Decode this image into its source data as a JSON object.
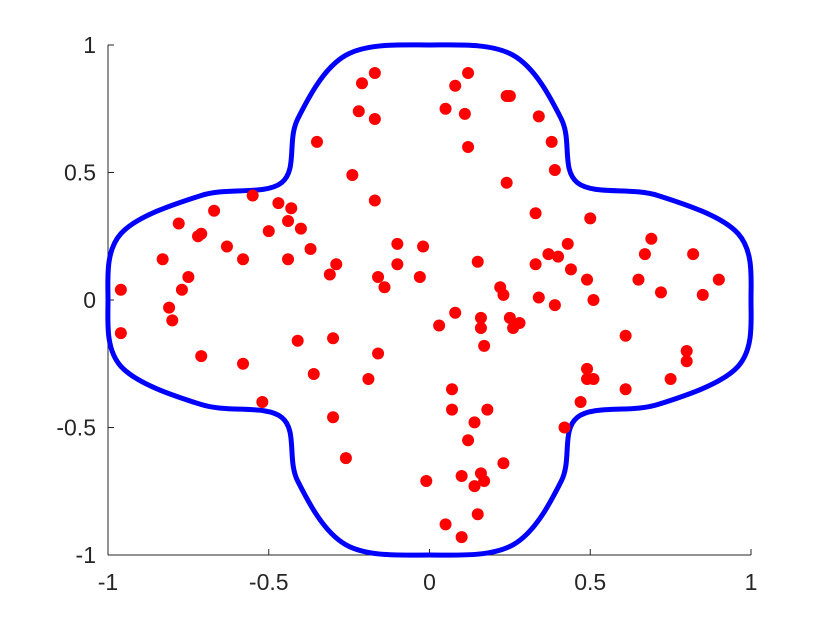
{
  "chart_data": {
    "type": "scatter",
    "xlim": [
      -1,
      1
    ],
    "ylim": [
      -1,
      1
    ],
    "xticks": [
      -1,
      -0.5,
      0,
      0.5,
      1
    ],
    "yticks": [
      -1,
      -0.5,
      0,
      0.5,
      1
    ],
    "series": [
      {
        "type": "line",
        "color": "#0000ff",
        "closed": true,
        "x": [
          1,
          0.96,
          0.71,
          0.46,
          0.41,
          0.26,
          0,
          -0.26,
          -0.41,
          -0.46,
          -0.71,
          -0.96,
          -1,
          -0.96,
          -0.71,
          -0.46,
          -0.41,
          -0.26,
          0,
          0.26,
          0.41,
          0.46,
          0.71,
          0.96
        ],
        "values": [
          0,
          0.26,
          0.41,
          0.46,
          0.71,
          0.96,
          1,
          0.96,
          0.71,
          0.46,
          0.41,
          0.26,
          0,
          -0.26,
          -0.41,
          -0.46,
          -0.71,
          -0.96,
          -1,
          -0.96,
          -0.71,
          -0.46,
          -0.41,
          -0.26
        ]
      },
      {
        "type": "scatter",
        "color": "#ff0000",
        "x": [
          -0.96,
          -0.96,
          -0.83,
          -0.81,
          -0.8,
          -0.78,
          -0.77,
          -0.75,
          -0.72,
          -0.71,
          -0.71,
          -0.67,
          -0.63,
          -0.58,
          -0.58,
          -0.55,
          -0.52,
          -0.5,
          -0.47,
          -0.44,
          -0.44,
          -0.43,
          -0.41,
          -0.4,
          -0.37,
          -0.36,
          -0.35,
          -0.31,
          -0.3,
          -0.3,
          -0.29,
          -0.26,
          -0.24,
          -0.22,
          -0.21,
          -0.19,
          -0.17,
          -0.17,
          -0.17,
          -0.16,
          -0.16,
          -0.14,
          -0.1,
          -0.1,
          -0.03,
          -0.02,
          -0.01,
          0.03,
          0.05,
          0.05,
          0.07,
          0.07,
          0.08,
          0.08,
          0.1,
          0.1,
          0.11,
          0.12,
          0.12,
          0.12,
          0.14,
          0.14,
          0.15,
          0.15,
          0.16,
          0.16,
          0.16,
          0.17,
          0.17,
          0.18,
          0.22,
          0.23,
          0.23,
          0.24,
          0.24,
          0.25,
          0.25,
          0.26,
          0.28,
          0.33,
          0.33,
          0.34,
          0.34,
          0.37,
          0.38,
          0.39,
          0.4,
          0.39,
          0.43,
          0.42,
          0.44,
          0.47,
          0.49,
          0.49,
          0.49,
          0.5,
          0.51,
          0.51,
          0.61,
          0.61,
          0.65,
          0.67,
          0.69,
          0.72,
          0.75,
          0.8,
          0.8,
          0.82,
          0.85,
          0.9
        ],
        "values": [
          0.04,
          -0.13,
          0.16,
          -0.03,
          -0.08,
          0.3,
          0.04,
          0.09,
          0.25,
          0.26,
          -0.22,
          0.35,
          0.21,
          0.16,
          -0.25,
          0.41,
          -0.4,
          0.27,
          0.38,
          0.31,
          0.16,
          0.36,
          -0.16,
          0.28,
          0.2,
          -0.29,
          0.62,
          0.1,
          -0.15,
          -0.46,
          0.14,
          -0.62,
          0.49,
          0.74,
          0.85,
          -0.31,
          0.71,
          0.39,
          0.89,
          -0.21,
          0.09,
          0.05,
          0.22,
          0.14,
          0.09,
          0.21,
          -0.71,
          -0.1,
          -0.88,
          0.75,
          -0.43,
          -0.35,
          -0.05,
          0.84,
          -0.93,
          -0.69,
          0.73,
          0.89,
          0.6,
          -0.55,
          -0.48,
          -0.73,
          -0.84,
          0.15,
          -0.07,
          -0.11,
          -0.68,
          -0.71,
          -0.18,
          -0.43,
          0.05,
          0.02,
          -0.64,
          0.8,
          0.46,
          -0.07,
          0.8,
          -0.11,
          -0.09,
          0.34,
          0.14,
          0.72,
          0.01,
          0.18,
          0.62,
          0.51,
          0.17,
          -0.02,
          0.22,
          -0.5,
          0.12,
          -0.4,
          -0.27,
          -0.31,
          0.08,
          0.32,
          -0.31,
          0.0,
          -0.14,
          -0.35,
          0.08,
          0.18,
          0.24,
          0.03,
          -0.31,
          -0.2,
          -0.24,
          0.18,
          0.02,
          0.08
        ]
      }
    ]
  }
}
